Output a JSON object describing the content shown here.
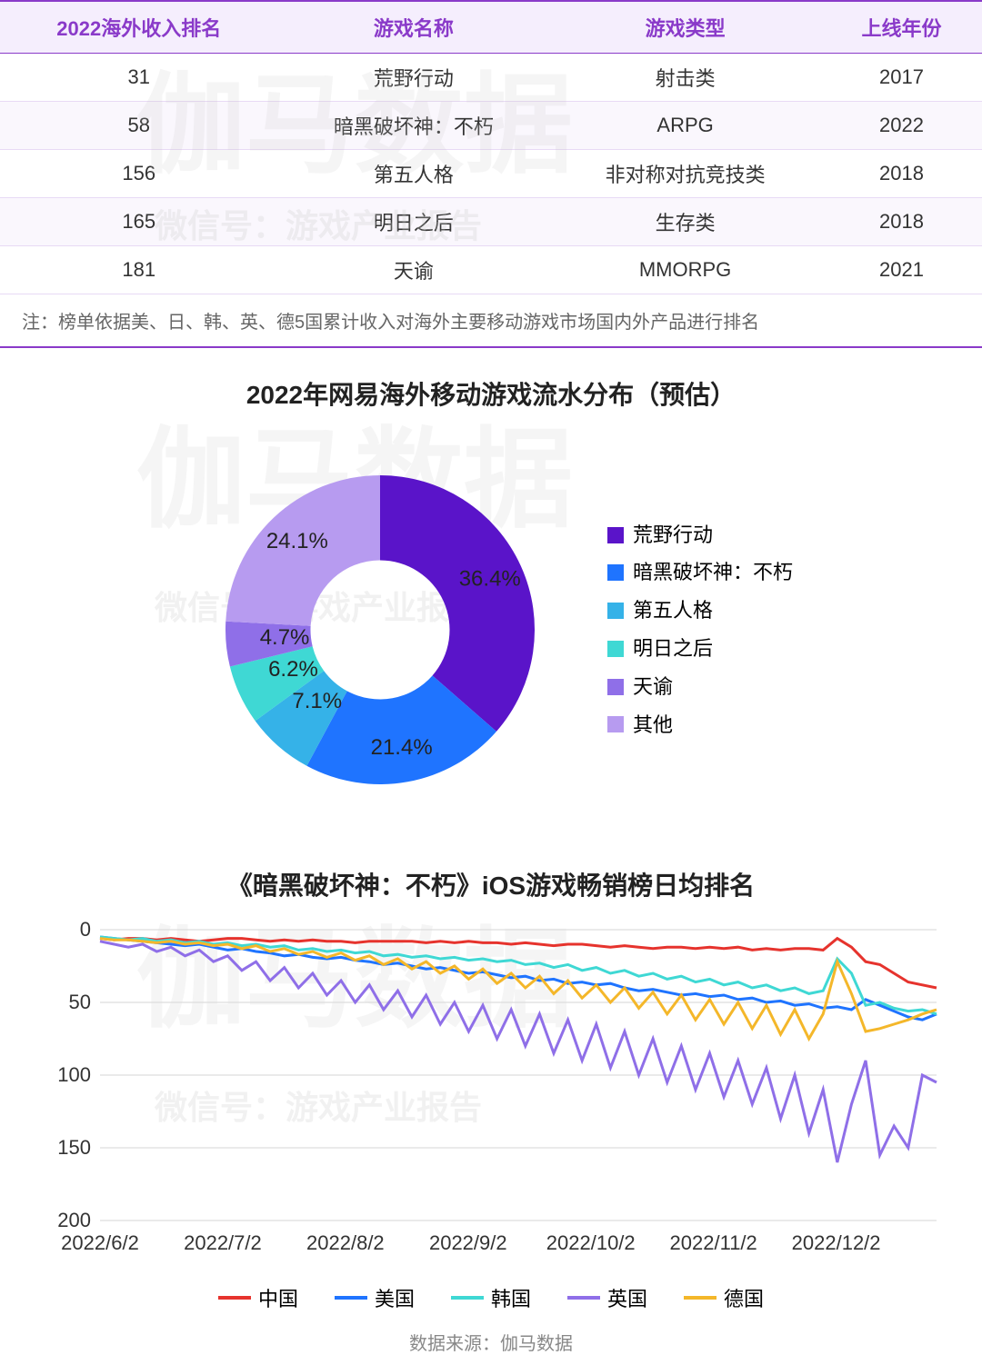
{
  "table": {
    "headers": [
      "2022海外收入排名",
      "游戏名称",
      "游戏类型",
      "上线年份"
    ],
    "rows": [
      [
        "31",
        "荒野行动",
        "射击类",
        "2017"
      ],
      [
        "58",
        "暗黑破坏神：不朽",
        "ARPG",
        "2022"
      ],
      [
        "156",
        "第五人格",
        "非对称对抗竞技类",
        "2018"
      ],
      [
        "165",
        "明日之后",
        "生存类",
        "2018"
      ],
      [
        "181",
        "天谕",
        "MMORPG",
        "2021"
      ]
    ],
    "header_bg": "#f5eefd",
    "header_color": "#8a3ac9",
    "row_alt_bg": "#faf7fd",
    "border_color": "#e8daf5"
  },
  "note": "注：榜单依据美、日、韩、英、德5国累计收入对海外主要移动游戏市场国内外产品进行排名",
  "donut": {
    "title": "2022年网易海外移动游戏流水分布（预估）",
    "type": "donut",
    "inner_ratio": 0.45,
    "background": "#ffffff",
    "slices": [
      {
        "label": "荒野行动",
        "value": 36.4,
        "color": "#5a14c9"
      },
      {
        "label": "暗黑破坏神：不朽",
        "value": 21.4,
        "color": "#1f74ff"
      },
      {
        "label": "第五人格",
        "value": 7.1,
        "color": "#35b2e8"
      },
      {
        "label": "明日之后",
        "value": 6.2,
        "color": "#3fd8d4"
      },
      {
        "label": "天谕",
        "value": 4.7,
        "color": "#8f6fe8"
      },
      {
        "label": "其他",
        "value": 24.1,
        "color": "#b79bf0"
      }
    ],
    "label_fontsize": 24,
    "label_color": "#222"
  },
  "line": {
    "title": "《暗黑破坏神：不朽》iOS游戏畅销榜日均排名",
    "type": "line",
    "ylim": [
      0,
      200
    ],
    "ytick_step": 50,
    "y_inverted": false,
    "grid_color": "#d6d6d6",
    "background": "#ffffff",
    "line_width": 3,
    "x_labels": [
      "2022/6/2",
      "2022/7/2",
      "2022/8/2",
      "2022/9/2",
      "2022/10/2",
      "2022/11/2",
      "2022/12/2"
    ],
    "n_points": 60,
    "series": [
      {
        "name": "中国",
        "color": "#e6332d",
        "values": [
          6,
          7,
          6,
          6,
          7,
          6,
          7,
          8,
          7,
          6,
          6,
          7,
          8,
          7,
          8,
          7,
          8,
          8,
          9,
          8,
          8,
          8,
          8,
          9,
          8,
          9,
          8,
          9,
          9,
          10,
          9,
          10,
          11,
          10,
          10,
          11,
          12,
          11,
          12,
          13,
          12,
          12,
          13,
          12,
          13,
          12,
          14,
          13,
          14,
          13,
          13,
          14,
          6,
          12,
          22,
          24,
          30,
          36,
          38,
          40
        ]
      },
      {
        "name": "美国",
        "color": "#1f74ff",
        "values": [
          5,
          6,
          7,
          8,
          9,
          10,
          11,
          10,
          12,
          14,
          13,
          15,
          16,
          18,
          17,
          19,
          20,
          19,
          21,
          22,
          24,
          23,
          25,
          27,
          26,
          28,
          30,
          29,
          31,
          33,
          32,
          35,
          34,
          37,
          36,
          38,
          37,
          40,
          42,
          41,
          43,
          45,
          44,
          46,
          45,
          48,
          47,
          50,
          49,
          52,
          51,
          54,
          53,
          55,
          48,
          52,
          56,
          60,
          62,
          58
        ]
      },
      {
        "name": "韩国",
        "color": "#3fd8d4",
        "values": [
          5,
          6,
          7,
          6,
          8,
          7,
          9,
          8,
          10,
          9,
          11,
          10,
          12,
          11,
          14,
          13,
          15,
          14,
          16,
          15,
          18,
          17,
          19,
          18,
          20,
          19,
          21,
          20,
          22,
          21,
          24,
          23,
          26,
          24,
          28,
          26,
          30,
          28,
          32,
          30,
          34,
          32,
          36,
          34,
          38,
          36,
          40,
          38,
          42,
          40,
          44,
          42,
          20,
          30,
          52,
          50,
          54,
          56,
          55,
          58
        ]
      },
      {
        "name": "英国",
        "color": "#8f6fe8",
        "values": [
          8,
          10,
          12,
          10,
          15,
          12,
          18,
          14,
          22,
          18,
          28,
          22,
          35,
          26,
          40,
          30,
          45,
          35,
          50,
          38,
          55,
          42,
          60,
          45,
          65,
          50,
          70,
          52,
          75,
          55,
          80,
          58,
          85,
          62,
          90,
          65,
          95,
          70,
          100,
          75,
          105,
          80,
          110,
          85,
          115,
          90,
          120,
          95,
          130,
          100,
          140,
          110,
          160,
          120,
          90,
          155,
          135,
          150,
          100,
          105
        ]
      },
      {
        "name": "德国",
        "color": "#f4b72a",
        "values": [
          6,
          7,
          7,
          8,
          9,
          8,
          10,
          9,
          11,
          10,
          13,
          11,
          15,
          13,
          17,
          15,
          19,
          16,
          21,
          18,
          24,
          20,
          27,
          22,
          30,
          25,
          34,
          27,
          37,
          30,
          40,
          32,
          44,
          35,
          47,
          38,
          50,
          40,
          54,
          43,
          58,
          45,
          62,
          48,
          65,
          50,
          68,
          52,
          72,
          55,
          75,
          58,
          22,
          44,
          70,
          68,
          65,
          62,
          58,
          55
        ]
      }
    ],
    "legend_gap": 40
  },
  "source": "数据来源：伽马数据",
  "watermarks": {
    "big": "伽马数据",
    "small": "微信号：游戏产业报告"
  },
  "colors": {
    "accent": "#8a3ac9"
  }
}
